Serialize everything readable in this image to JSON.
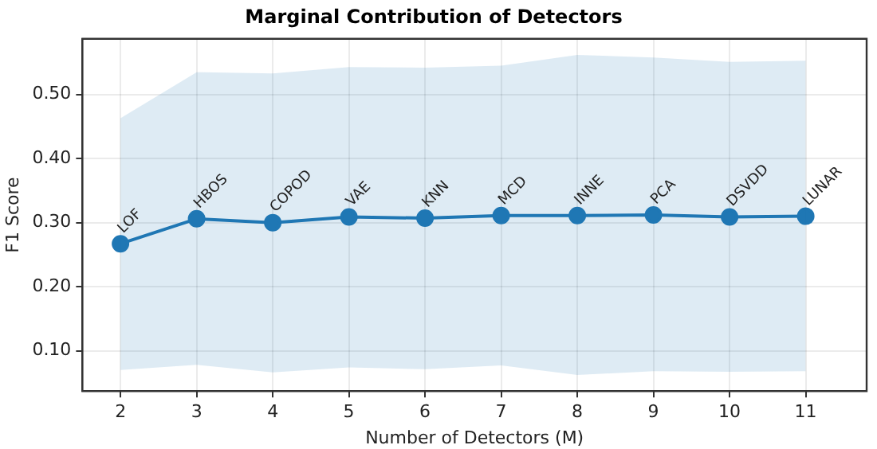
{
  "chart_data": {
    "type": "line",
    "title": "Marginal Contribution of Detectors",
    "xlabel": "Number of Detectors (M)",
    "ylabel": "F1 Score",
    "x": [
      2,
      3,
      4,
      5,
      6,
      7,
      8,
      9,
      10,
      11
    ],
    "series": [
      {
        "color": "#1f77b4",
        "values": [
          0.267,
          0.306,
          0.3,
          0.309,
          0.307,
          0.311,
          0.311,
          0.312,
          0.309,
          0.31
        ],
        "lower": [
          0.07,
          0.078,
          0.066,
          0.074,
          0.071,
          0.077,
          0.062,
          0.068,
          0.067,
          0.068
        ],
        "upper": [
          0.463,
          0.535,
          0.533,
          0.543,
          0.542,
          0.545,
          0.562,
          0.558,
          0.551,
          0.553
        ]
      }
    ],
    "annotations": [
      {
        "text": "LOF",
        "x": 2,
        "y": 0.267
      },
      {
        "text": "HBOS",
        "x": 3,
        "y": 0.306
      },
      {
        "text": "COPOD",
        "x": 4,
        "y": 0.3
      },
      {
        "text": "VAE",
        "x": 5,
        "y": 0.309
      },
      {
        "text": "KNN",
        "x": 6,
        "y": 0.307
      },
      {
        "text": "MCD",
        "x": 7,
        "y": 0.311
      },
      {
        "text": "INNE",
        "x": 8,
        "y": 0.311
      },
      {
        "text": "PCA",
        "x": 9,
        "y": 0.312
      },
      {
        "text": "DSVDD",
        "x": 10,
        "y": 0.309
      },
      {
        "text": "LUNAR",
        "x": 11,
        "y": 0.31
      }
    ],
    "xlim": [
      1.5,
      11.8
    ],
    "xticks": [
      2,
      3,
      4,
      5,
      6,
      7,
      8,
      9,
      10,
      11
    ],
    "ylim": [
      0.037,
      0.587
    ],
    "yticks": [
      {
        "value": 0.1,
        "label": "0.10"
      },
      {
        "value": 0.2,
        "label": "0.20"
      },
      {
        "value": 0.3,
        "label": "0.30"
      },
      {
        "value": 0.4,
        "label": "0.40"
      },
      {
        "value": 0.5,
        "label": "0.50"
      }
    ],
    "grid": true,
    "marker": "circle",
    "line_style": "solid",
    "legend": false
  }
}
